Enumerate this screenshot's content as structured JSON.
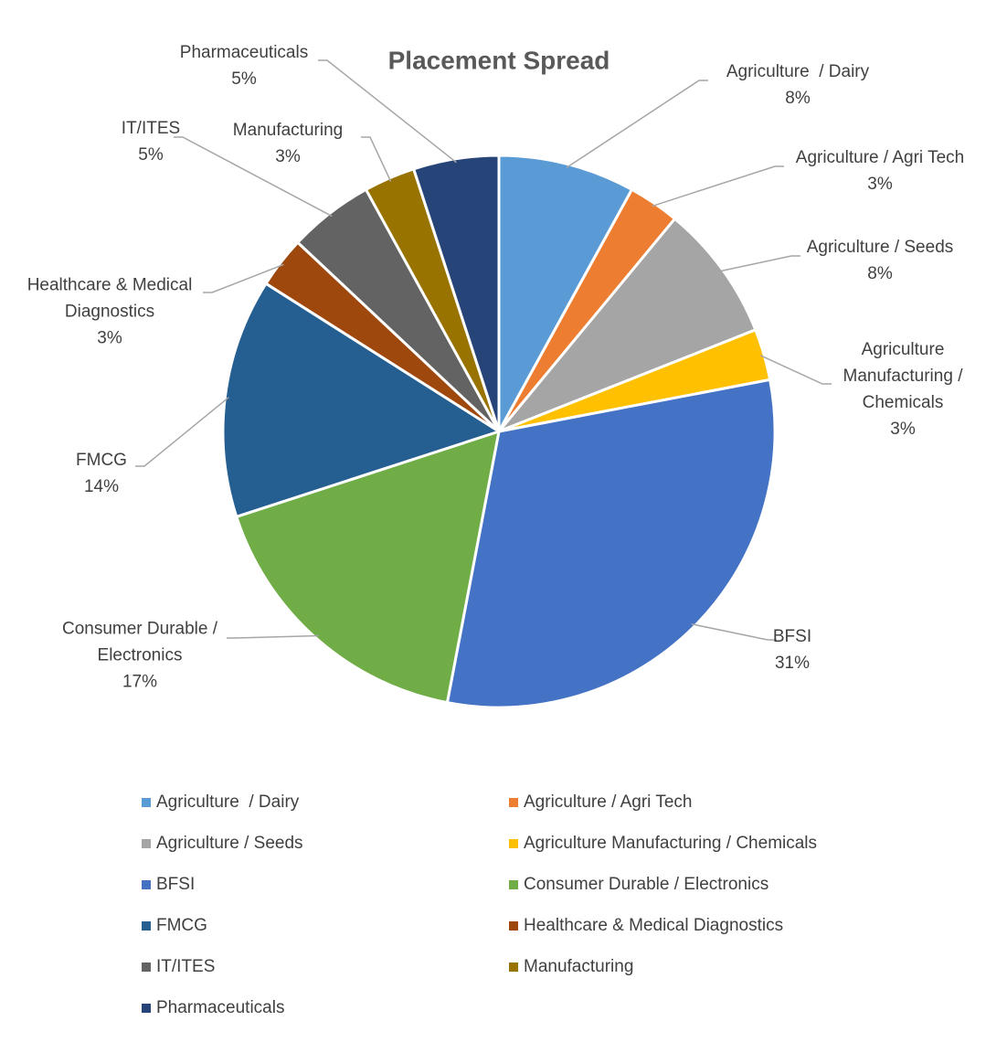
{
  "chart_data": {
    "type": "pie",
    "title": "Placement Spread",
    "categories": [
      "Agriculture  / Dairy",
      "Agriculture / Agri Tech",
      "Agriculture / Seeds",
      "Agriculture Manufacturing / Chemicals",
      "BFSI",
      "Consumer Durable / Electronics",
      "FMCG",
      "Healthcare & Medical Diagnostics",
      "IT/ITES",
      "Manufacturing",
      "Pharmaceuticals"
    ],
    "values": [
      8,
      3,
      8,
      3,
      31,
      17,
      14,
      3,
      5,
      3,
      5
    ],
    "value_labels": [
      "8%",
      "3%",
      "8%",
      "3%",
      "31%",
      "17%",
      "14%",
      "3%",
      "5%",
      "3%",
      "5%"
    ],
    "colors": [
      "#5b9bd5",
      "#ed7d31",
      "#a5a5a5",
      "#ffc000",
      "#4472c4",
      "#70ad47",
      "#255e91",
      "#9e480e",
      "#636363",
      "#997300",
      "#264478"
    ],
    "legend": "bottom"
  }
}
